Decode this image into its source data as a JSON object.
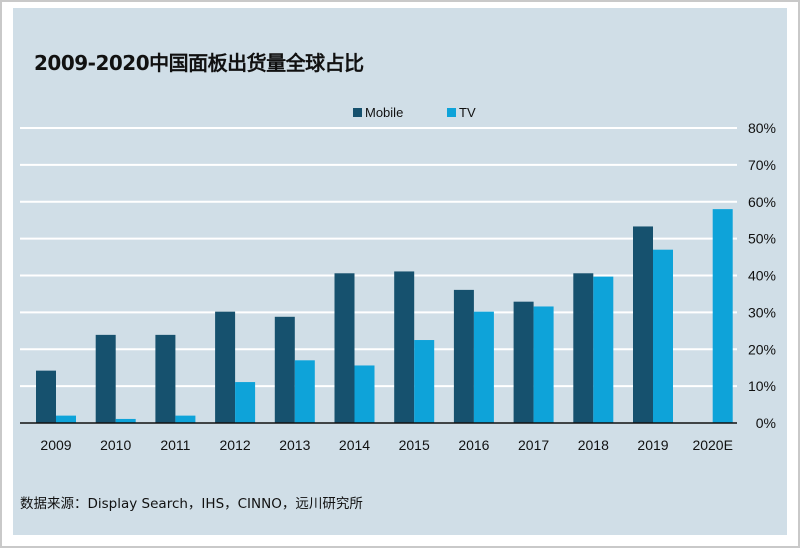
{
  "chart_data": {
    "type": "bar",
    "title": "2009-2020中国面板出货量全球占比",
    "categories": [
      "2009",
      "2010",
      "2011",
      "2012",
      "2013",
      "2014",
      "2015",
      "2016",
      "2017",
      "2018",
      "2019",
      "2020E"
    ],
    "series": [
      {
        "name": "Mobile",
        "color": "#16516e",
        "values": [
          14.2,
          23.9,
          23.9,
          30.2,
          28.8,
          40.6,
          41.1,
          36.1,
          32.9,
          40.6,
          53.3,
          null
        ]
      },
      {
        "name": "TV",
        "color": "#0ea3d9",
        "values": [
          2.0,
          1.1,
          2.0,
          11.1,
          17.0,
          15.6,
          22.5,
          30.2,
          31.6,
          39.7,
          47.0,
          58.0
        ]
      }
    ],
    "ylim": [
      0,
      80
    ],
    "yticks": [
      "0%",
      "10%",
      "20%",
      "30%",
      "40%",
      "50%",
      "60%",
      "70%",
      "80%"
    ],
    "y_axis_side": "right",
    "grid": true,
    "legend_position": "top-center",
    "source": "数据来源：Display Search，IHS，CINNO，远川研究所"
  }
}
